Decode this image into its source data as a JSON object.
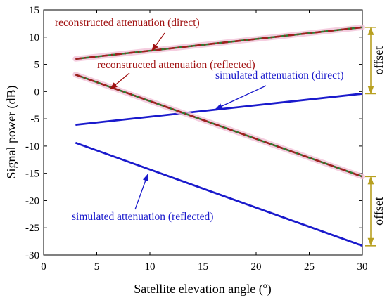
{
  "chart_data": {
    "type": "line",
    "xlabel_main": "Satellite elevation angle (",
    "xlabel_sup": "o",
    "xlabel_end": ")",
    "ylabel": "Signal power (dB)",
    "xlim": [
      0,
      30
    ],
    "ylim": [
      -30,
      15
    ],
    "xticks": [
      0,
      5,
      10,
      15,
      20,
      25,
      30
    ],
    "yticks": [
      -30,
      -25,
      -20,
      -15,
      -10,
      -5,
      0,
      5,
      10,
      15
    ],
    "grid": false,
    "series": [
      {
        "key": "sim_direct",
        "x": [
          3,
          30
        ],
        "y": [
          -6.1,
          -0.4
        ],
        "color": "#1a1acc",
        "style": "solid"
      },
      {
        "key": "sim_reflected",
        "x": [
          3,
          30
        ],
        "y": [
          -9.4,
          -28.3
        ],
        "color": "#1a1acc",
        "style": "solid"
      },
      {
        "key": "rec_direct",
        "x": [
          3,
          30
        ],
        "y": [
          6.0,
          11.8
        ],
        "color": "#a02020",
        "style": "dashdot"
      },
      {
        "key": "rec_reflected",
        "x": [
          3,
          30
        ],
        "y": [
          3.1,
          -15.6
        ],
        "color": "#a02020",
        "style": "dashdot"
      }
    ],
    "annotations": [
      {
        "text": "reconstructed attenuation (direct)",
        "color": "#a01010",
        "arrow_to": [
          10.2,
          7.5
        ]
      },
      {
        "text": "reconstructed attenuation (reflected)",
        "color": "#a01010",
        "arrow_to": [
          6.3,
          0.5
        ]
      },
      {
        "text": "simulated attenuation (direct)",
        "color": "#1a1acc",
        "arrow_to": [
          16.2,
          -3.2
        ]
      },
      {
        "text": "simulated attenuation (reflected)",
        "color": "#1a1acc",
        "arrow_to": [
          9.8,
          -15.2
        ]
      }
    ],
    "offsets": [
      {
        "label": "offset",
        "y_top": 11.8,
        "y_bottom": -0.4
      },
      {
        "label": "offset",
        "y_top": -15.6,
        "y_bottom": -28.3
      }
    ],
    "offset_color": "#b8a020"
  }
}
